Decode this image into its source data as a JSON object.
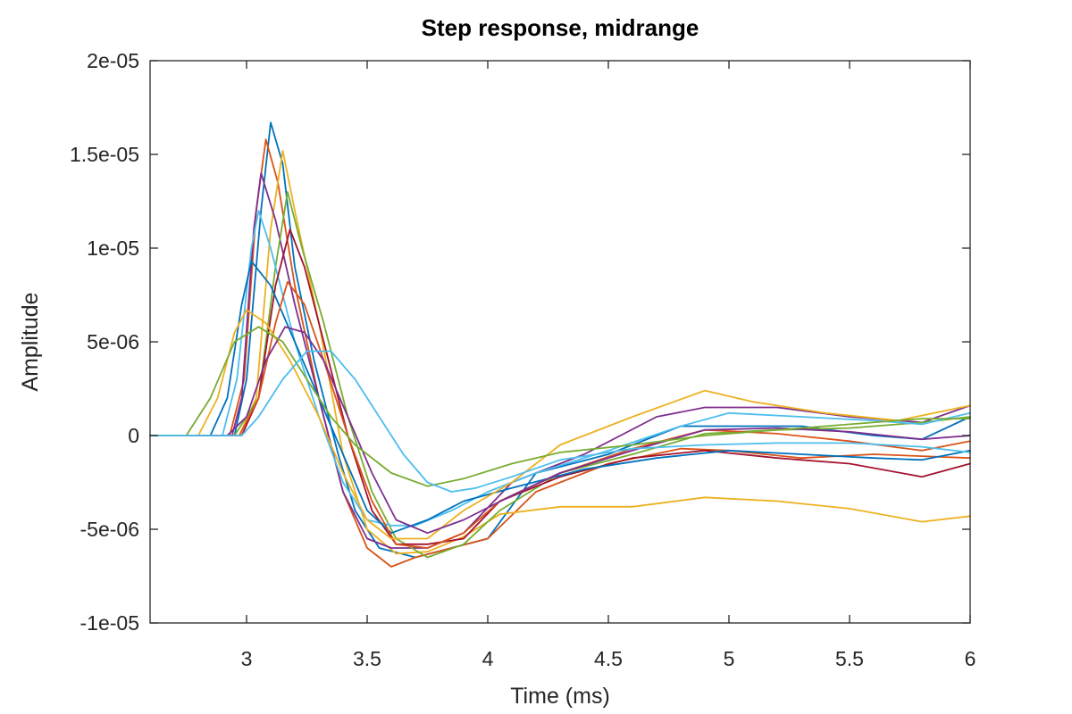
{
  "chart_data": {
    "type": "line",
    "title": "Step response, midrange",
    "xlabel": "Time (ms)",
    "ylabel": "Amplitude",
    "xlim": [
      2.6,
      6
    ],
    "ylim": [
      -1e-05,
      2e-05
    ],
    "xticks": [
      3,
      3.5,
      4,
      4.5,
      5,
      5.5,
      6
    ],
    "xtick_labels": [
      "3",
      "3.5",
      "4",
      "4.5",
      "5",
      "5.5",
      "6"
    ],
    "yticks": [
      -1e-05,
      -5e-06,
      0,
      5e-06,
      1e-05,
      1.5e-05,
      2e-05
    ],
    "ytick_labels": [
      "-1e-05",
      "-5e-06",
      "0",
      "5e-06",
      "1e-05",
      "1.5e-05",
      "2e-05"
    ],
    "grid": false,
    "legend": "none",
    "series": [
      {
        "color": "#0072bd",
        "points": [
          [
            2.6,
            0
          ],
          [
            2.95,
            0
          ],
          [
            3.0,
            3e-06
          ],
          [
            3.06,
            1.2e-05
          ],
          [
            3.1,
            1.67e-05
          ],
          [
            3.15,
            1.45e-05
          ],
          [
            3.2,
            9e-06
          ],
          [
            3.28,
            4e-06
          ],
          [
            3.38,
            -1e-06
          ],
          [
            3.45,
            -4e-06
          ],
          [
            3.55,
            -6e-06
          ],
          [
            3.7,
            -6.5e-06
          ],
          [
            3.85,
            -6e-06
          ],
          [
            4.0,
            -5.5e-06
          ],
          [
            4.2,
            -2e-06
          ],
          [
            4.5,
            -1e-06
          ],
          [
            4.8,
            5e-07
          ],
          [
            5.0,
            5e-07
          ],
          [
            5.3,
            5e-07
          ],
          [
            5.6,
            0
          ],
          [
            5.8,
            -2e-07
          ],
          [
            6.0,
            1e-06
          ]
        ]
      },
      {
        "color": "#d95319",
        "points": [
          [
            2.6,
            0
          ],
          [
            2.93,
            0
          ],
          [
            2.99,
            3e-06
          ],
          [
            3.04,
            1.2e-05
          ],
          [
            3.08,
            1.58e-05
          ],
          [
            3.13,
            1.35e-05
          ],
          [
            3.2,
            8e-06
          ],
          [
            3.3,
            2e-06
          ],
          [
            3.4,
            -3e-06
          ],
          [
            3.5,
            -6e-06
          ],
          [
            3.6,
            -7e-06
          ],
          [
            3.7,
            -6.5e-06
          ],
          [
            3.85,
            -6e-06
          ],
          [
            4.0,
            -5.5e-06
          ],
          [
            4.2,
            -3e-06
          ],
          [
            4.5,
            -1.5e-06
          ],
          [
            4.8,
            -7e-07
          ],
          [
            5.0,
            -8e-07
          ],
          [
            5.3,
            -1.2e-06
          ],
          [
            5.6,
            -1e-06
          ],
          [
            5.8,
            -1.1e-06
          ],
          [
            6.0,
            -1.2e-06
          ]
        ]
      },
      {
        "color": "#edb120",
        "points": [
          [
            2.6,
            0
          ],
          [
            2.97,
            0
          ],
          [
            3.04,
            2e-06
          ],
          [
            3.1,
            1.1e-05
          ],
          [
            3.15,
            1.52e-05
          ],
          [
            3.2,
            1.2e-05
          ],
          [
            3.3,
            6e-06
          ],
          [
            3.4,
            -1e-06
          ],
          [
            3.5,
            -5e-06
          ],
          [
            3.62,
            -6.3e-06
          ],
          [
            3.75,
            -6.2e-06
          ],
          [
            3.9,
            -5.4e-06
          ],
          [
            4.05,
            -4.2e-06
          ],
          [
            4.3,
            -3.8e-06
          ],
          [
            4.6,
            -3.8e-06
          ],
          [
            4.9,
            -3.3e-06
          ],
          [
            5.2,
            -3.5e-06
          ],
          [
            5.5,
            -3.9e-06
          ],
          [
            5.8,
            -4.6e-06
          ],
          [
            6.0,
            -4.3e-06
          ]
        ]
      },
      {
        "color": "#7e2f8e",
        "points": [
          [
            2.6,
            0
          ],
          [
            2.94,
            0
          ],
          [
            2.98,
            2e-06
          ],
          [
            3.03,
            1.1e-05
          ],
          [
            3.06,
            1.4e-05
          ],
          [
            3.12,
            1.15e-05
          ],
          [
            3.2,
            7e-06
          ],
          [
            3.3,
            2e-06
          ],
          [
            3.4,
            -3e-06
          ],
          [
            3.5,
            -5.5e-06
          ],
          [
            3.6,
            -6e-06
          ],
          [
            3.75,
            -6e-06
          ],
          [
            3.9,
            -5.2e-06
          ],
          [
            4.1,
            -2.5e-06
          ],
          [
            4.4,
            -1e-06
          ],
          [
            4.7,
            1e-06
          ],
          [
            4.9,
            1.5e-06
          ],
          [
            5.2,
            1.5e-06
          ],
          [
            5.5,
            1e-06
          ],
          [
            5.8,
            7e-07
          ],
          [
            6.0,
            1.6e-06
          ]
        ]
      },
      {
        "color": "#77ac30",
        "points": [
          [
            2.6,
            0
          ],
          [
            2.95,
            0
          ],
          [
            3.05,
            2e-06
          ],
          [
            3.12,
            9e-06
          ],
          [
            3.17,
            1.3e-05
          ],
          [
            3.23,
            1e-05
          ],
          [
            3.32,
            6e-06
          ],
          [
            3.42,
            1e-06
          ],
          [
            3.52,
            -3e-06
          ],
          [
            3.62,
            -5.5e-06
          ],
          [
            3.75,
            -6.5e-06
          ],
          [
            3.9,
            -5.8e-06
          ],
          [
            4.05,
            -4e-06
          ],
          [
            4.3,
            -2e-06
          ],
          [
            4.6,
            -1e-06
          ],
          [
            4.9,
            1e-07
          ],
          [
            5.2,
            3e-07
          ],
          [
            5.5,
            4e-07
          ],
          [
            5.8,
            7e-07
          ],
          [
            6.0,
            1e-06
          ]
        ]
      },
      {
        "color": "#4dbeee",
        "points": [
          [
            2.6,
            0
          ],
          [
            2.9,
            0
          ],
          [
            2.96,
            3e-06
          ],
          [
            3.02,
            1e-05
          ],
          [
            3.05,
            1.2e-05
          ],
          [
            3.1,
            1e-05
          ],
          [
            3.2,
            5e-06
          ],
          [
            3.3,
            1e-06
          ],
          [
            3.4,
            -2.5e-06
          ],
          [
            3.5,
            -4.5e-06
          ],
          [
            3.6,
            -4.8e-06
          ],
          [
            3.7,
            -4.8e-06
          ],
          [
            3.85,
            -4e-06
          ],
          [
            4.0,
            -3e-06
          ],
          [
            4.2,
            -2e-06
          ],
          [
            4.5,
            -8e-07
          ],
          [
            4.8,
            5e-07
          ],
          [
            5.0,
            1.2e-06
          ],
          [
            5.3,
            1e-06
          ],
          [
            5.6,
            8e-07
          ],
          [
            5.8,
            6e-07
          ],
          [
            6.0,
            1.2e-06
          ]
        ]
      },
      {
        "color": "#a2142f",
        "points": [
          [
            2.6,
            0
          ],
          [
            2.98,
            0
          ],
          [
            3.05,
            2e-06
          ],
          [
            3.12,
            8e-06
          ],
          [
            3.18,
            1.1e-05
          ],
          [
            3.24,
            9e-06
          ],
          [
            3.32,
            5e-06
          ],
          [
            3.42,
            0
          ],
          [
            3.52,
            -4e-06
          ],
          [
            3.62,
            -5.8e-06
          ],
          [
            3.75,
            -5.8e-06
          ],
          [
            3.9,
            -5.5e-06
          ],
          [
            4.05,
            -3.5e-06
          ],
          [
            4.3,
            -2.2e-06
          ],
          [
            4.6,
            -1.2e-06
          ],
          [
            4.9,
            -8e-07
          ],
          [
            5.2,
            -1.2e-06
          ],
          [
            5.5,
            -1.5e-06
          ],
          [
            5.8,
            -2.2e-06
          ],
          [
            6.0,
            -1.5e-06
          ]
        ]
      },
      {
        "color": "#0072bd",
        "points": [
          [
            2.6,
            0
          ],
          [
            2.85,
            0
          ],
          [
            2.92,
            2e-06
          ],
          [
            2.98,
            7e-06
          ],
          [
            3.02,
            9.3e-06
          ],
          [
            3.1,
            8e-06
          ],
          [
            3.2,
            5e-06
          ],
          [
            3.3,
            2e-06
          ],
          [
            3.4,
            -1e-06
          ],
          [
            3.5,
            -4e-06
          ],
          [
            3.6,
            -5.2e-06
          ],
          [
            3.75,
            -4.5e-06
          ],
          [
            3.9,
            -3.5e-06
          ],
          [
            4.1,
            -2.8e-06
          ],
          [
            4.4,
            -1.8e-06
          ],
          [
            4.7,
            -1.2e-06
          ],
          [
            5.0,
            -8e-07
          ],
          [
            5.3,
            -1e-06
          ],
          [
            5.6,
            -1.2e-06
          ],
          [
            5.8,
            -1.3e-06
          ],
          [
            6.0,
            -8e-07
          ]
        ]
      },
      {
        "color": "#d95319",
        "points": [
          [
            2.6,
            0
          ],
          [
            2.97,
            0
          ],
          [
            3.05,
            2e-06
          ],
          [
            3.12,
            6e-06
          ],
          [
            3.17,
            8.2e-06
          ],
          [
            3.24,
            7e-06
          ],
          [
            3.32,
            4e-06
          ],
          [
            3.42,
            0
          ],
          [
            3.52,
            -3.5e-06
          ],
          [
            3.62,
            -5.8e-06
          ],
          [
            3.75,
            -6e-06
          ],
          [
            3.9,
            -5.2e-06
          ],
          [
            4.05,
            -3.5e-06
          ],
          [
            4.3,
            -2e-06
          ],
          [
            4.6,
            -7e-07
          ],
          [
            4.9,
            3e-07
          ],
          [
            5.2,
            1e-07
          ],
          [
            5.5,
            -3e-07
          ],
          [
            5.8,
            -8e-07
          ],
          [
            6.0,
            -3e-07
          ]
        ]
      },
      {
        "color": "#edb120",
        "points": [
          [
            2.6,
            0
          ],
          [
            2.8,
            0
          ],
          [
            2.88,
            2e-06
          ],
          [
            2.95,
            5.5e-06
          ],
          [
            3.0,
            6.7e-06
          ],
          [
            3.08,
            6e-06
          ],
          [
            3.18,
            4e-06
          ],
          [
            3.3,
            1e-06
          ],
          [
            3.4,
            -2e-06
          ],
          [
            3.5,
            -4.5e-06
          ],
          [
            3.6,
            -5.5e-06
          ],
          [
            3.75,
            -5.5e-06
          ],
          [
            3.9,
            -4e-06
          ],
          [
            4.1,
            -2.5e-06
          ],
          [
            4.3,
            -5e-07
          ],
          [
            4.6,
            1e-06
          ],
          [
            4.9,
            2.4e-06
          ],
          [
            5.1,
            1.8e-06
          ],
          [
            5.4,
            1.2e-06
          ],
          [
            5.7,
            8e-07
          ],
          [
            6.0,
            1.6e-06
          ]
        ]
      },
      {
        "color": "#7e2f8e",
        "points": [
          [
            2.6,
            0
          ],
          [
            2.92,
            0
          ],
          [
            3.0,
            1e-06
          ],
          [
            3.08,
            4e-06
          ],
          [
            3.16,
            5.8e-06
          ],
          [
            3.24,
            5.5e-06
          ],
          [
            3.32,
            4e-06
          ],
          [
            3.42,
            1e-06
          ],
          [
            3.52,
            -2e-06
          ],
          [
            3.62,
            -4.5e-06
          ],
          [
            3.75,
            -5.2e-06
          ],
          [
            3.9,
            -4.5e-06
          ],
          [
            4.1,
            -3.2e-06
          ],
          [
            4.3,
            -2e-06
          ],
          [
            4.6,
            -8e-07
          ],
          [
            4.9,
            3e-07
          ],
          [
            5.2,
            4e-07
          ],
          [
            5.5,
            2e-07
          ],
          [
            5.8,
            -2e-07
          ],
          [
            6.0,
            0
          ]
        ]
      },
      {
        "color": "#77ac30",
        "points": [
          [
            2.6,
            0
          ],
          [
            2.75,
            0
          ],
          [
            2.85,
            2e-06
          ],
          [
            2.95,
            5e-06
          ],
          [
            3.05,
            5.8e-06
          ],
          [
            3.15,
            5e-06
          ],
          [
            3.25,
            3e-06
          ],
          [
            3.35,
            1e-06
          ],
          [
            3.45,
            -5e-07
          ],
          [
            3.6,
            -2e-06
          ],
          [
            3.75,
            -2.7e-06
          ],
          [
            3.9,
            -2.3e-06
          ],
          [
            4.1,
            -1.5e-06
          ],
          [
            4.3,
            -9e-07
          ],
          [
            4.6,
            -5e-07
          ],
          [
            4.9,
            0
          ],
          [
            5.2,
            3e-07
          ],
          [
            5.5,
            6e-07
          ],
          [
            5.8,
            9e-07
          ],
          [
            6.0,
            9e-07
          ]
        ]
      },
      {
        "color": "#4dbeee",
        "points": [
          [
            2.6,
            0
          ],
          [
            2.98,
            0
          ],
          [
            3.05,
            1e-06
          ],
          [
            3.15,
            3e-06
          ],
          [
            3.25,
            4.5e-06
          ],
          [
            3.35,
            4.5e-06
          ],
          [
            3.45,
            3e-06
          ],
          [
            3.55,
            1e-06
          ],
          [
            3.65,
            -1e-06
          ],
          [
            3.75,
            -2.5e-06
          ],
          [
            3.85,
            -3e-06
          ],
          [
            3.95,
            -2.8e-06
          ],
          [
            4.1,
            -2.2e-06
          ],
          [
            4.3,
            -1.3e-06
          ],
          [
            4.6,
            -7e-07
          ],
          [
            4.9,
            -5e-07
          ],
          [
            5.2,
            -4e-07
          ],
          [
            5.5,
            -4e-07
          ],
          [
            5.8,
            -6e-07
          ],
          [
            6.0,
            -9e-07
          ]
        ]
      }
    ]
  }
}
